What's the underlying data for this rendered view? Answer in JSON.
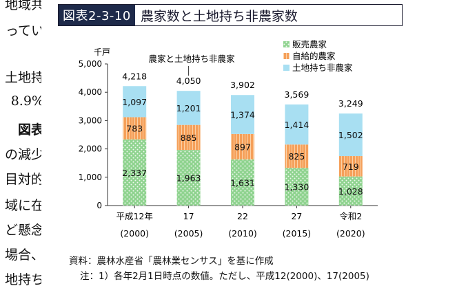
{
  "left_text": [
    "地域共",
    "ってい",
    "土地持",
    "8.9%",
    "図表",
    "の減少",
    "目対的",
    "域に在",
    "ど懸念",
    "場合、",
    "地持ち"
  ],
  "figure": {
    "number": "図表2-3-10",
    "title": "農家数と土地持ち非農家数"
  },
  "chart_data": {
    "type": "bar",
    "stacked": true,
    "unit_label": "千戸",
    "categories": [
      "平成12年",
      "17",
      "22",
      "27",
      "令和2"
    ],
    "category_years": [
      "(2000)",
      "(2005)",
      "(2010)",
      "(2015)",
      "(2020)"
    ],
    "series": [
      {
        "name": "販売農家",
        "values": [
          2337,
          1963,
          1631,
          1330,
          1028
        ],
        "color": "#8fd38f"
      },
      {
        "name": "自給的農家",
        "values": [
          783,
          885,
          897,
          825,
          719
        ],
        "color": "#f5a05a"
      },
      {
        "name": "土地持ち非農家",
        "values": [
          1097,
          1201,
          1374,
          1414,
          1502
        ],
        "color": "#a8dff2"
      }
    ],
    "totals": [
      4218,
      4050,
      3902,
      3569,
      3249
    ],
    "y_ticks": [
      "0",
      "1,000",
      "2,000",
      "3,000",
      "4,000",
      "5,000"
    ],
    "ylim": [
      0,
      5000
    ],
    "annotation": "農家と土地持ち非農家",
    "legend_position": "top-right"
  },
  "source_note": "資料：農林水産省「農林業センサス」を基に作成",
  "footnote": "注：1）各年2月1日時点の数値。ただし、平成12(2000)、17(2005)"
}
